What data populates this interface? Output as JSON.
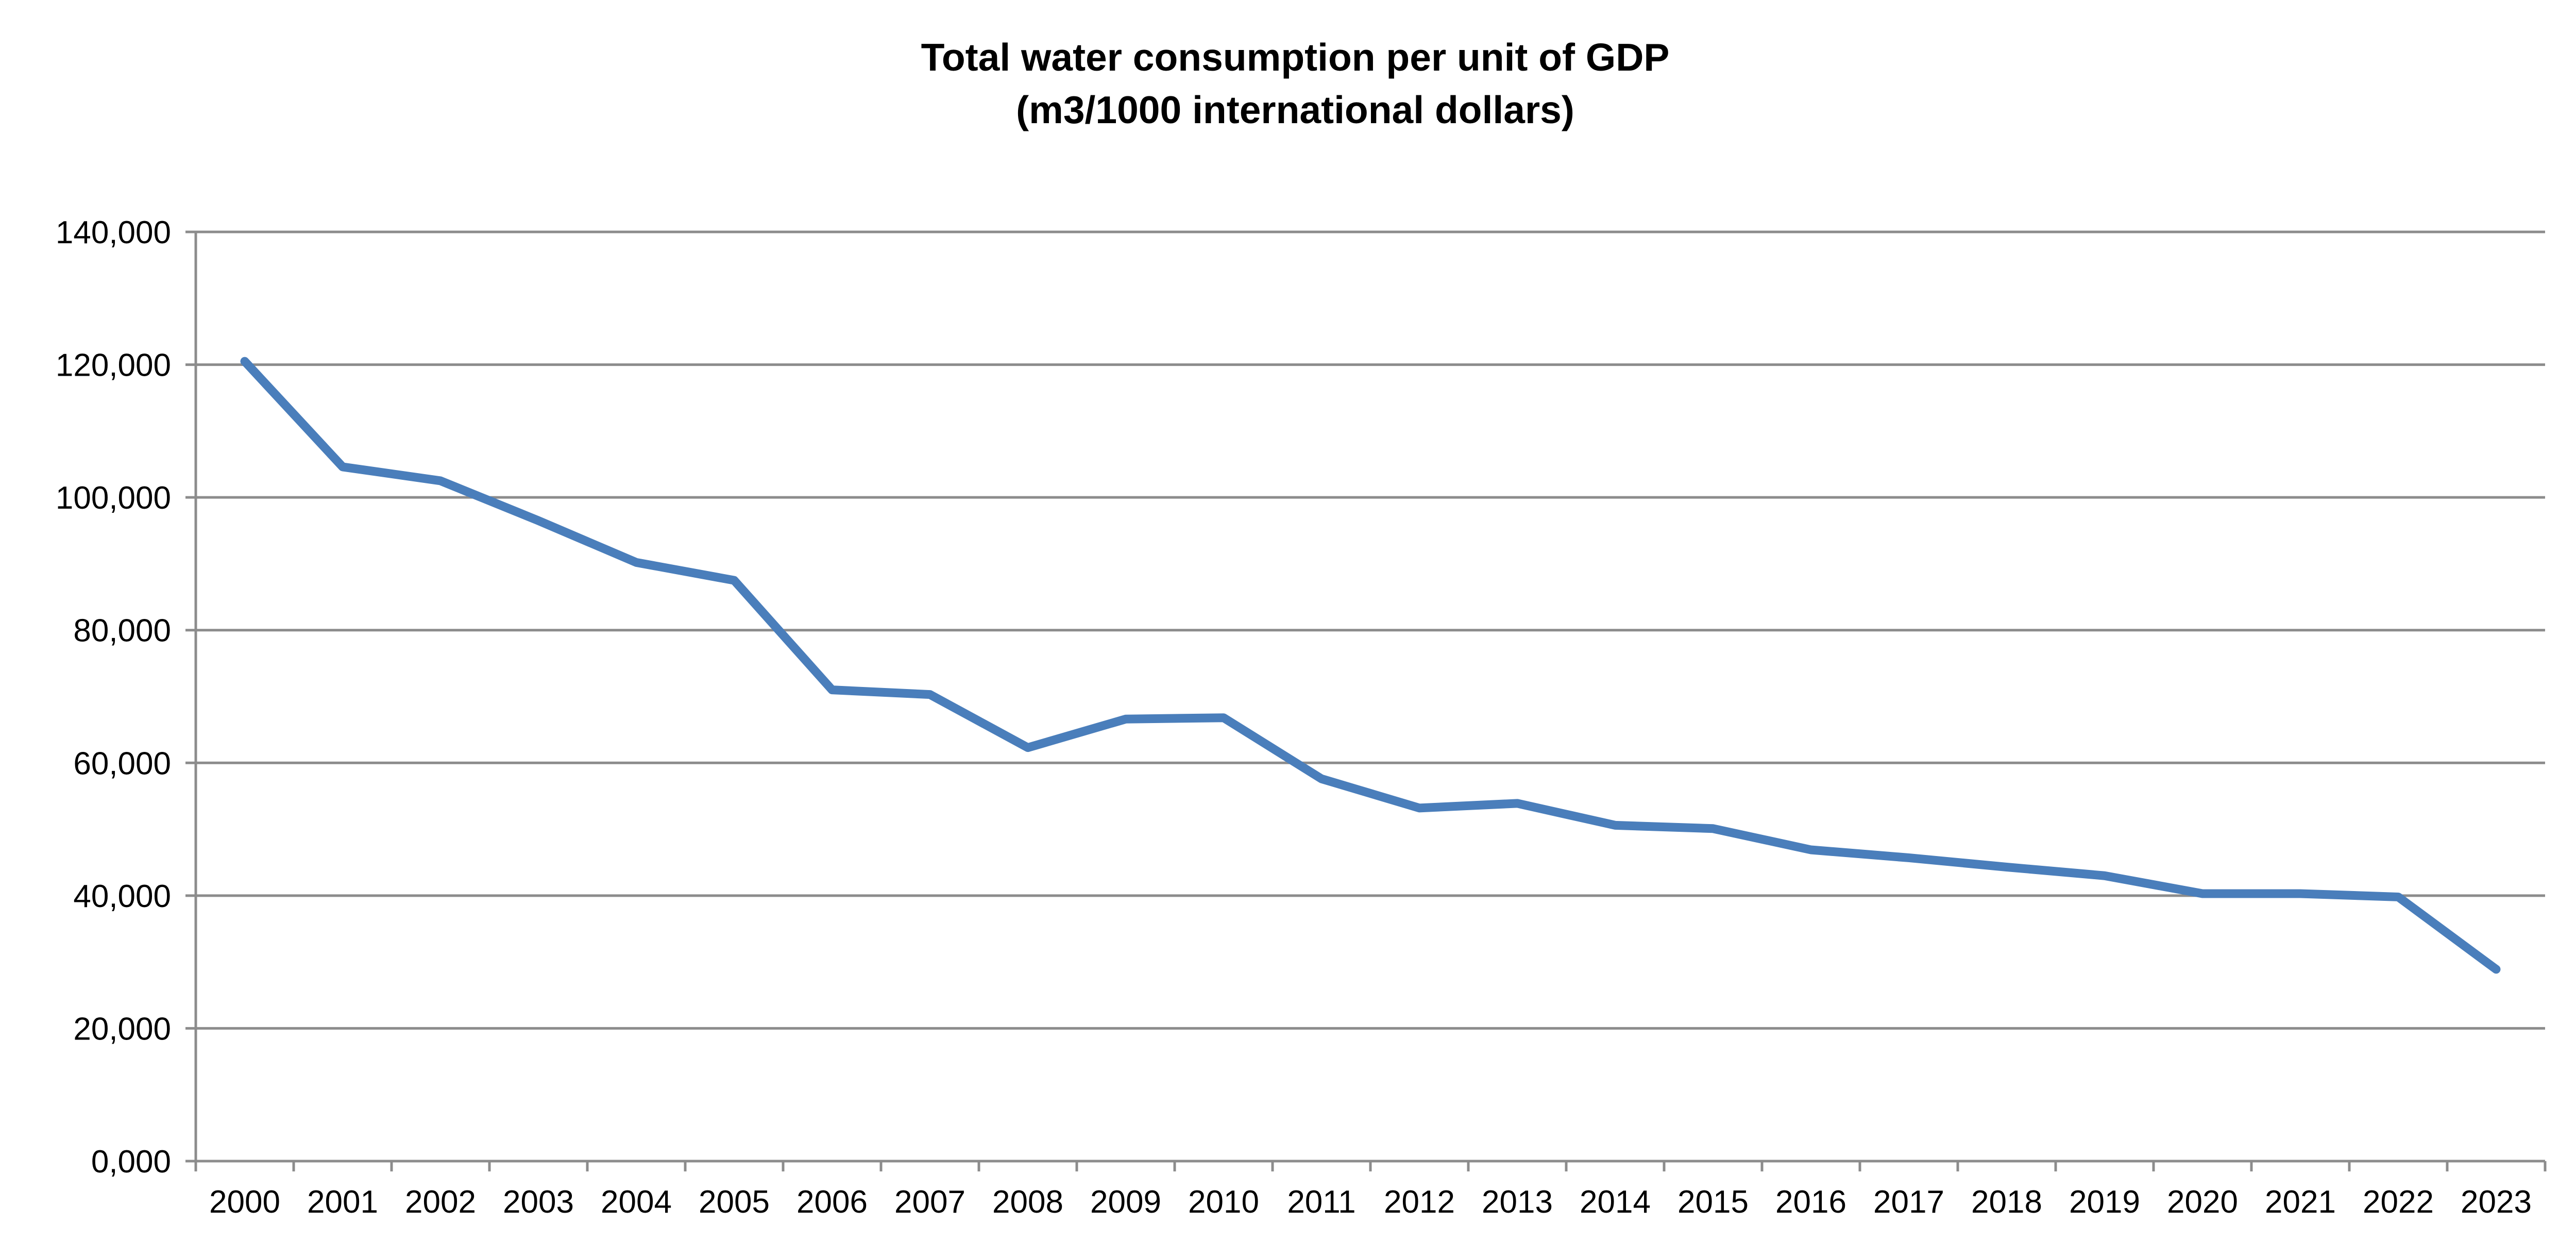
{
  "chart_data": {
    "type": "line",
    "title": "Total water consumption per unit of GDP",
    "subtitle": "(m3/1000 international dollars)",
    "xlabel": "",
    "ylabel": "",
    "categories": [
      "2000",
      "2001",
      "2002",
      "2003",
      "2004",
      "2005",
      "2006",
      "2007",
      "2008",
      "2009",
      "2010",
      "2011",
      "2012",
      "2013",
      "2014",
      "2015",
      "2016",
      "2017",
      "2018",
      "2019",
      "2020",
      "2021",
      "2022",
      "2023"
    ],
    "series": [
      {
        "values": [
          120.5,
          104.6,
          102.5,
          96.5,
          90.2,
          87.5,
          71.0,
          70.3,
          62.3,
          66.6,
          66.8,
          57.6,
          53.2,
          53.9,
          50.6,
          50.1,
          46.9,
          45.7,
          44.3,
          43.0,
          40.3,
          40.3,
          39.8,
          28.9
        ],
        "color": "#4a7ebb"
      }
    ],
    "ylim": [
      0,
      140
    ],
    "yticks": [
      0,
      20,
      40,
      60,
      80,
      100,
      120,
      140
    ],
    "ytick_labels": [
      "0,000",
      "20,000",
      "40,000",
      "60,000",
      "80,000",
      "100,000",
      "120,000",
      "140,000"
    ],
    "grid": true,
    "legend": "none",
    "colors": {
      "line": "#4a7ebb",
      "grid": "#8c8c8c",
      "axis": "#8c8c8c"
    }
  }
}
